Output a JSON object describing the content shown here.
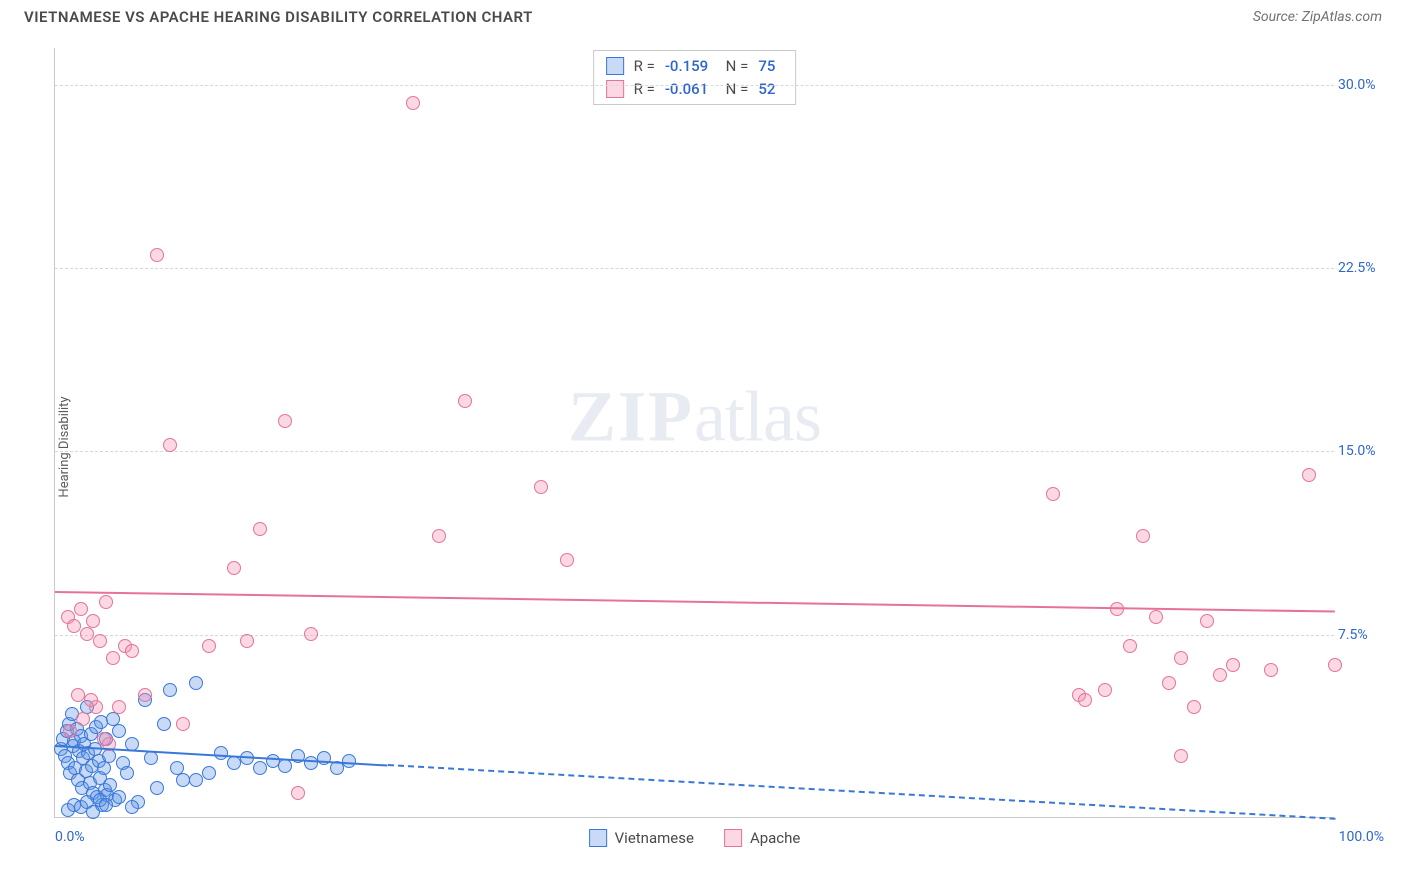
{
  "title": "VIETNAMESE VS APACHE HEARING DISABILITY CORRELATION CHART",
  "source": "Source: ZipAtlas.com",
  "ylabel": "Hearing Disability",
  "watermark_a": "ZIP",
  "watermark_b": "atlas",
  "chart": {
    "type": "scatter",
    "xlim": [
      0,
      100
    ],
    "ylim": [
      0,
      31.5
    ],
    "yticks": [
      {
        "v": 7.5,
        "label": "7.5%"
      },
      {
        "v": 15.0,
        "label": "15.0%"
      },
      {
        "v": 22.5,
        "label": "22.5%"
      },
      {
        "v": 30.0,
        "label": "30.0%"
      }
    ],
    "xticks": [
      {
        "v": 0,
        "label": "0.0%",
        "align": "left"
      },
      {
        "v": 100,
        "label": "100.0%",
        "align": "right"
      }
    ],
    "background_color": "#ffffff",
    "grid_color": "#d8d8d8",
    "axis_color": "#c9c9c9",
    "tick_label_color": "#2d66d0",
    "marker_radius": 7,
    "marker_border_width": 1.2,
    "trend_width": 2.2,
    "series": [
      {
        "name": "Vietnamese",
        "fill": "rgba(96,150,230,0.35)",
        "stroke": "#3a78d8",
        "r_value": "-0.159",
        "n_value": "75",
        "trend": {
          "x1": 0,
          "y1": 3.0,
          "x2": 26,
          "y2": 2.2,
          "dash_x2": 100,
          "dash_y2": 0.0
        },
        "points": [
          [
            0.5,
            2.8
          ],
          [
            0.6,
            3.2
          ],
          [
            0.8,
            2.5
          ],
          [
            0.9,
            3.5
          ],
          [
            1.0,
            2.2
          ],
          [
            1.1,
            3.8
          ],
          [
            1.2,
            1.8
          ],
          [
            1.3,
            4.2
          ],
          [
            1.4,
            2.9
          ],
          [
            1.5,
            3.1
          ],
          [
            1.6,
            2.0
          ],
          [
            1.7,
            3.6
          ],
          [
            1.8,
            1.5
          ],
          [
            1.9,
            2.7
          ],
          [
            2.0,
            3.3
          ],
          [
            2.1,
            1.2
          ],
          [
            2.2,
            2.4
          ],
          [
            2.3,
            3.0
          ],
          [
            2.4,
            1.9
          ],
          [
            2.5,
            4.5
          ],
          [
            2.6,
            2.6
          ],
          [
            2.7,
            1.4
          ],
          [
            2.8,
            3.4
          ],
          [
            2.9,
            2.1
          ],
          [
            3.0,
            1.0
          ],
          [
            3.1,
            2.8
          ],
          [
            3.2,
            3.7
          ],
          [
            3.3,
            0.8
          ],
          [
            3.4,
            2.3
          ],
          [
            3.5,
            1.6
          ],
          [
            3.6,
            3.9
          ],
          [
            3.7,
            0.5
          ],
          [
            3.8,
            2.0
          ],
          [
            3.9,
            1.1
          ],
          [
            4.0,
            3.2
          ],
          [
            4.1,
            0.9
          ],
          [
            4.2,
            2.5
          ],
          [
            4.3,
            1.3
          ],
          [
            4.5,
            4.0
          ],
          [
            4.7,
            0.7
          ],
          [
            5.0,
            3.5
          ],
          [
            5.3,
            2.2
          ],
          [
            5.6,
            1.8
          ],
          [
            6.0,
            3.0
          ],
          [
            6.5,
            0.6
          ],
          [
            7.0,
            4.8
          ],
          [
            7.5,
            2.4
          ],
          [
            8.0,
            1.2
          ],
          [
            8.5,
            3.8
          ],
          [
            9.0,
            5.2
          ],
          [
            9.5,
            2.0
          ],
          [
            10.0,
            1.5
          ],
          [
            11.0,
            5.5
          ],
          [
            12.0,
            1.8
          ],
          [
            13.0,
            2.6
          ],
          [
            1.0,
            0.3
          ],
          [
            1.5,
            0.5
          ],
          [
            2.0,
            0.4
          ],
          [
            2.5,
            0.6
          ],
          [
            3.0,
            0.2
          ],
          [
            3.5,
            0.7
          ],
          [
            14.0,
            2.2
          ],
          [
            15.0,
            2.4
          ],
          [
            16.0,
            2.0
          ],
          [
            17.0,
            2.3
          ],
          [
            18.0,
            2.1
          ],
          [
            19.0,
            2.5
          ],
          [
            20.0,
            2.2
          ],
          [
            21.0,
            2.4
          ],
          [
            22.0,
            2.0
          ],
          [
            23.0,
            2.3
          ],
          [
            11.0,
            1.5
          ],
          [
            4.0,
            0.5
          ],
          [
            5.0,
            0.8
          ],
          [
            6.0,
            0.4
          ]
        ]
      },
      {
        "name": "Apache",
        "fill": "rgba(244,143,177,0.35)",
        "stroke": "#e57399",
        "r_value": "-0.061",
        "n_value": "52",
        "trend": {
          "x1": 0,
          "y1": 9.3,
          "x2": 100,
          "y2": 8.5
        },
        "points": [
          [
            1.0,
            8.2
          ],
          [
            1.5,
            7.8
          ],
          [
            2.0,
            8.5
          ],
          [
            2.5,
            7.5
          ],
          [
            3.0,
            8.0
          ],
          [
            3.5,
            7.2
          ],
          [
            4.0,
            8.8
          ],
          [
            4.5,
            6.5
          ],
          [
            5.0,
            4.5
          ],
          [
            5.5,
            7.0
          ],
          [
            6.0,
            6.8
          ],
          [
            7.0,
            5.0
          ],
          [
            8.0,
            23.0
          ],
          [
            9.0,
            15.2
          ],
          [
            10.0,
            3.8
          ],
          [
            12.0,
            7.0
          ],
          [
            14.0,
            10.2
          ],
          [
            15.0,
            7.2
          ],
          [
            16.0,
            11.8
          ],
          [
            18.0,
            16.2
          ],
          [
            19.0,
            1.0
          ],
          [
            20.0,
            7.5
          ],
          [
            28.0,
            29.2
          ],
          [
            30.0,
            11.5
          ],
          [
            32.0,
            17.0
          ],
          [
            38.0,
            13.5
          ],
          [
            40.0,
            10.5
          ],
          [
            78.0,
            13.2
          ],
          [
            80.0,
            5.0
          ],
          [
            80.5,
            4.8
          ],
          [
            82.0,
            5.2
          ],
          [
            83.0,
            8.5
          ],
          [
            84.0,
            7.0
          ],
          [
            85.0,
            11.5
          ],
          [
            86.0,
            8.2
          ],
          [
            87.0,
            5.5
          ],
          [
            88.0,
            6.5
          ],
          [
            89.0,
            4.5
          ],
          [
            90.0,
            8.0
          ],
          [
            91.0,
            5.8
          ],
          [
            92.0,
            6.2
          ],
          [
            88.0,
            2.5
          ],
          [
            95.0,
            6.0
          ],
          [
            98.0,
            14.0
          ],
          [
            100.0,
            6.2
          ],
          [
            1.2,
            3.5
          ],
          [
            2.2,
            4.0
          ],
          [
            3.2,
            4.5
          ],
          [
            4.2,
            3.0
          ],
          [
            1.8,
            5.0
          ],
          [
            2.8,
            4.8
          ],
          [
            3.8,
            3.2
          ]
        ]
      }
    ]
  },
  "legend": [
    {
      "label": "Vietnamese",
      "fill": "rgba(96,150,230,0.35)",
      "stroke": "#3a78d8"
    },
    {
      "label": "Apache",
      "fill": "rgba(244,143,177,0.35)",
      "stroke": "#e57399"
    }
  ]
}
